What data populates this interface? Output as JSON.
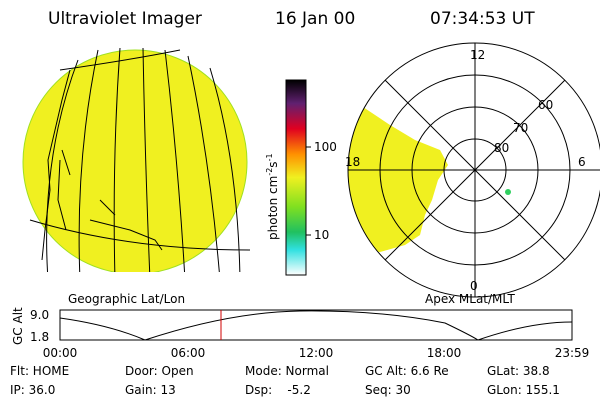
{
  "header": {
    "title": "Ultraviolet Imager",
    "date": "16 Jan 00",
    "time": "07:34:53 UT"
  },
  "colorbar": {
    "label": {
      "base": "photon cm",
      "exp1": "-2",
      "unit2": "s",
      "exp2": "-1"
    },
    "ticks": [
      "100",
      "10"
    ]
  },
  "geographic_panel": {
    "caption": "Geographic Lat/Lon"
  },
  "polar_panel": {
    "caption": "Apex MLat/MLT",
    "mlt_labels": {
      "top": "12",
      "left": "18",
      "right": "6",
      "bottom": "0"
    },
    "lat_labels": [
      "60",
      "70",
      "80"
    ]
  },
  "altitude_plot": {
    "label": "GC Alt",
    "yticks": [
      "9.0",
      "1.8"
    ],
    "xticks": [
      "00:00",
      "06:00",
      "12:00",
      "18:00",
      "23:59"
    ]
  },
  "status": {
    "rows": [
      [
        "Flt: HOME",
        "Door: Open",
        "Mode: Normal",
        "GC Alt: 6.6 Re",
        "GLat: 38.8"
      ],
      [
        "IP: 36.0",
        "Gain: 13",
        "Dsp:    -5.2",
        "Seq: 30",
        "GLon: 155.1"
      ]
    ]
  }
}
